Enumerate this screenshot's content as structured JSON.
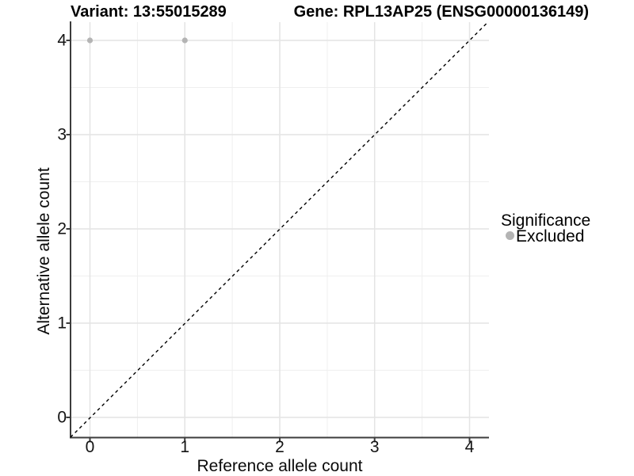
{
  "titles": {
    "variant": "Variant: 13:55015289",
    "gene": "Gene: RPL13AP25 (ENSG00000136149)"
  },
  "axes": {
    "x_label": "Reference allele count",
    "y_label": "Alternative allele count",
    "x_ticks": [
      "0",
      "1",
      "2",
      "3",
      "4"
    ],
    "y_ticks": [
      "0",
      "1",
      "2",
      "3",
      "4"
    ]
  },
  "legend": {
    "title": "Significance",
    "items": [
      {
        "label": "Excluded",
        "color": "#b4b4b4"
      }
    ]
  },
  "chart_data": {
    "type": "scatter",
    "title": "Variant: 13:55015289  /  Gene: RPL13AP25 (ENSG00000136149)",
    "xlabel": "Reference allele count",
    "ylabel": "Alternative allele count",
    "xlim": [
      -0.21,
      4.21
    ],
    "ylim": [
      -0.21,
      4.21
    ],
    "x_tick_values": [
      0,
      1,
      2,
      3,
      4
    ],
    "y_tick_values": [
      0,
      1,
      2,
      3,
      4
    ],
    "grid": "major and minor gridlines, light gray on white panel",
    "legend_position": "right",
    "series": [
      {
        "name": "Excluded",
        "color": "#b4b4b4",
        "marker": "circle",
        "points": [
          {
            "x": 0,
            "y": 4
          },
          {
            "x": 1,
            "y": 4
          }
        ]
      }
    ],
    "reference_line": {
      "type": "identity y=x",
      "style": "dashed",
      "color": "#000000"
    }
  },
  "colors": {
    "background": "#ffffff",
    "major_grid": "#e4e4e4",
    "minor_grid": "#efefef",
    "axis_line": "#3c3c3c",
    "point_gray": "#b4b4b4",
    "dashed_line": "#000000"
  }
}
